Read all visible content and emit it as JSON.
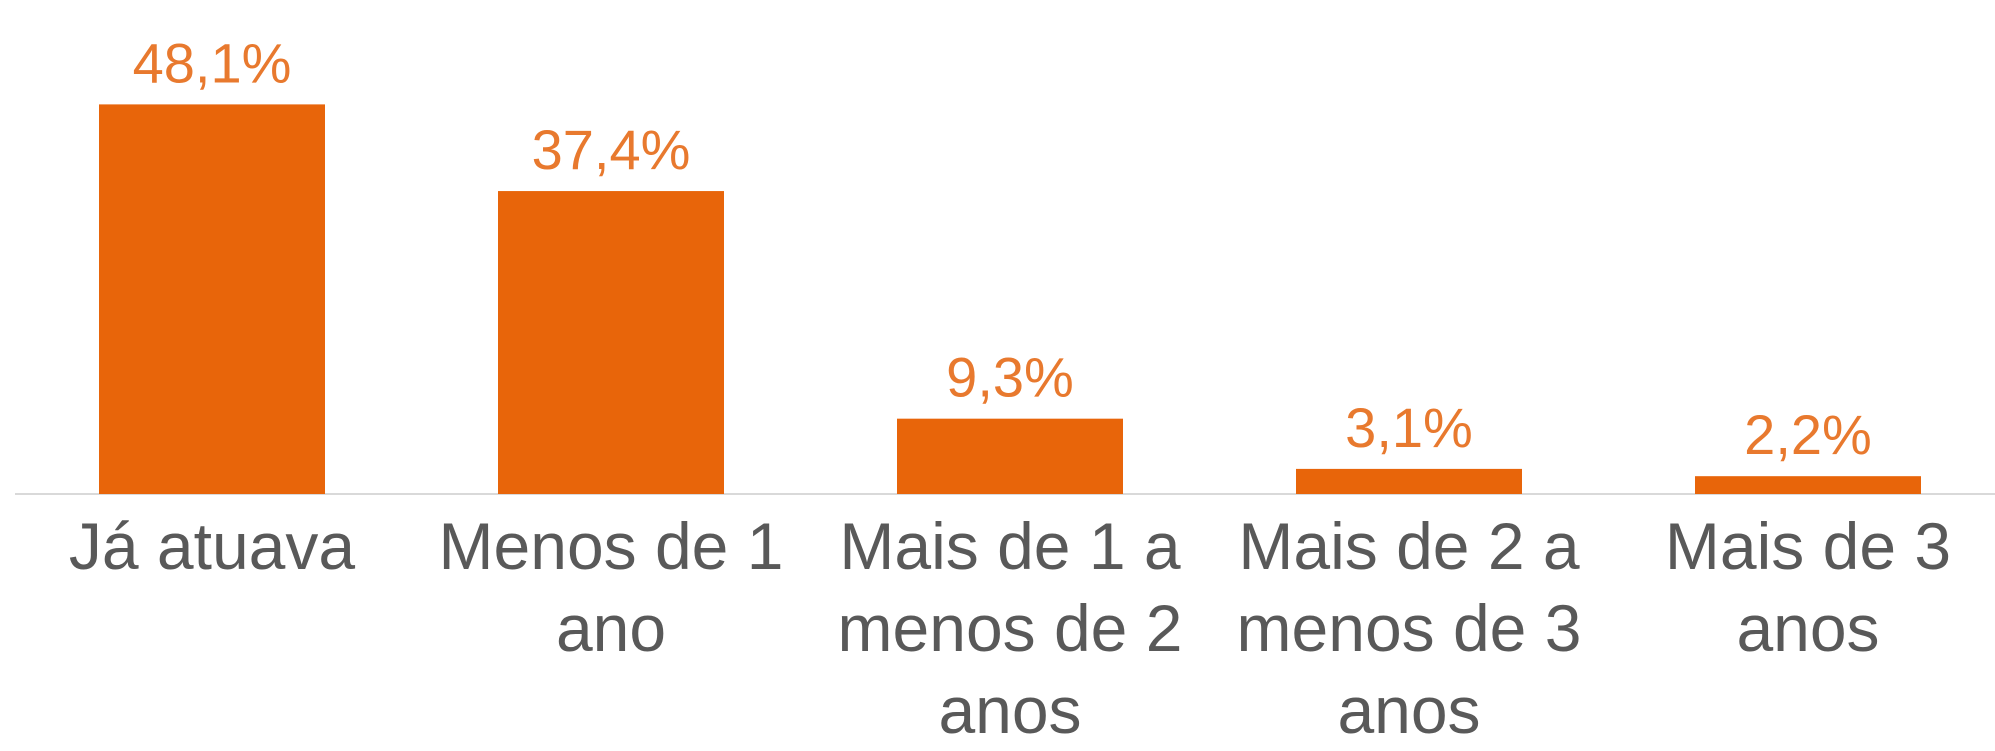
{
  "chart_data": {
    "type": "bar",
    "categories": [
      "Já atuava",
      "Menos de 1 ano",
      "Mais de 1 a menos de 2 anos",
      "Mais de 2 a menos de 3 anos",
      "Mais de 3 anos"
    ],
    "values": [
      48.1,
      37.4,
      9.3,
      3.1,
      2.2
    ],
    "value_labels": [
      "48,1%",
      "37,4%",
      "9,3%",
      "3,1%",
      "2,2%"
    ],
    "color": "#e8650a"
  }
}
